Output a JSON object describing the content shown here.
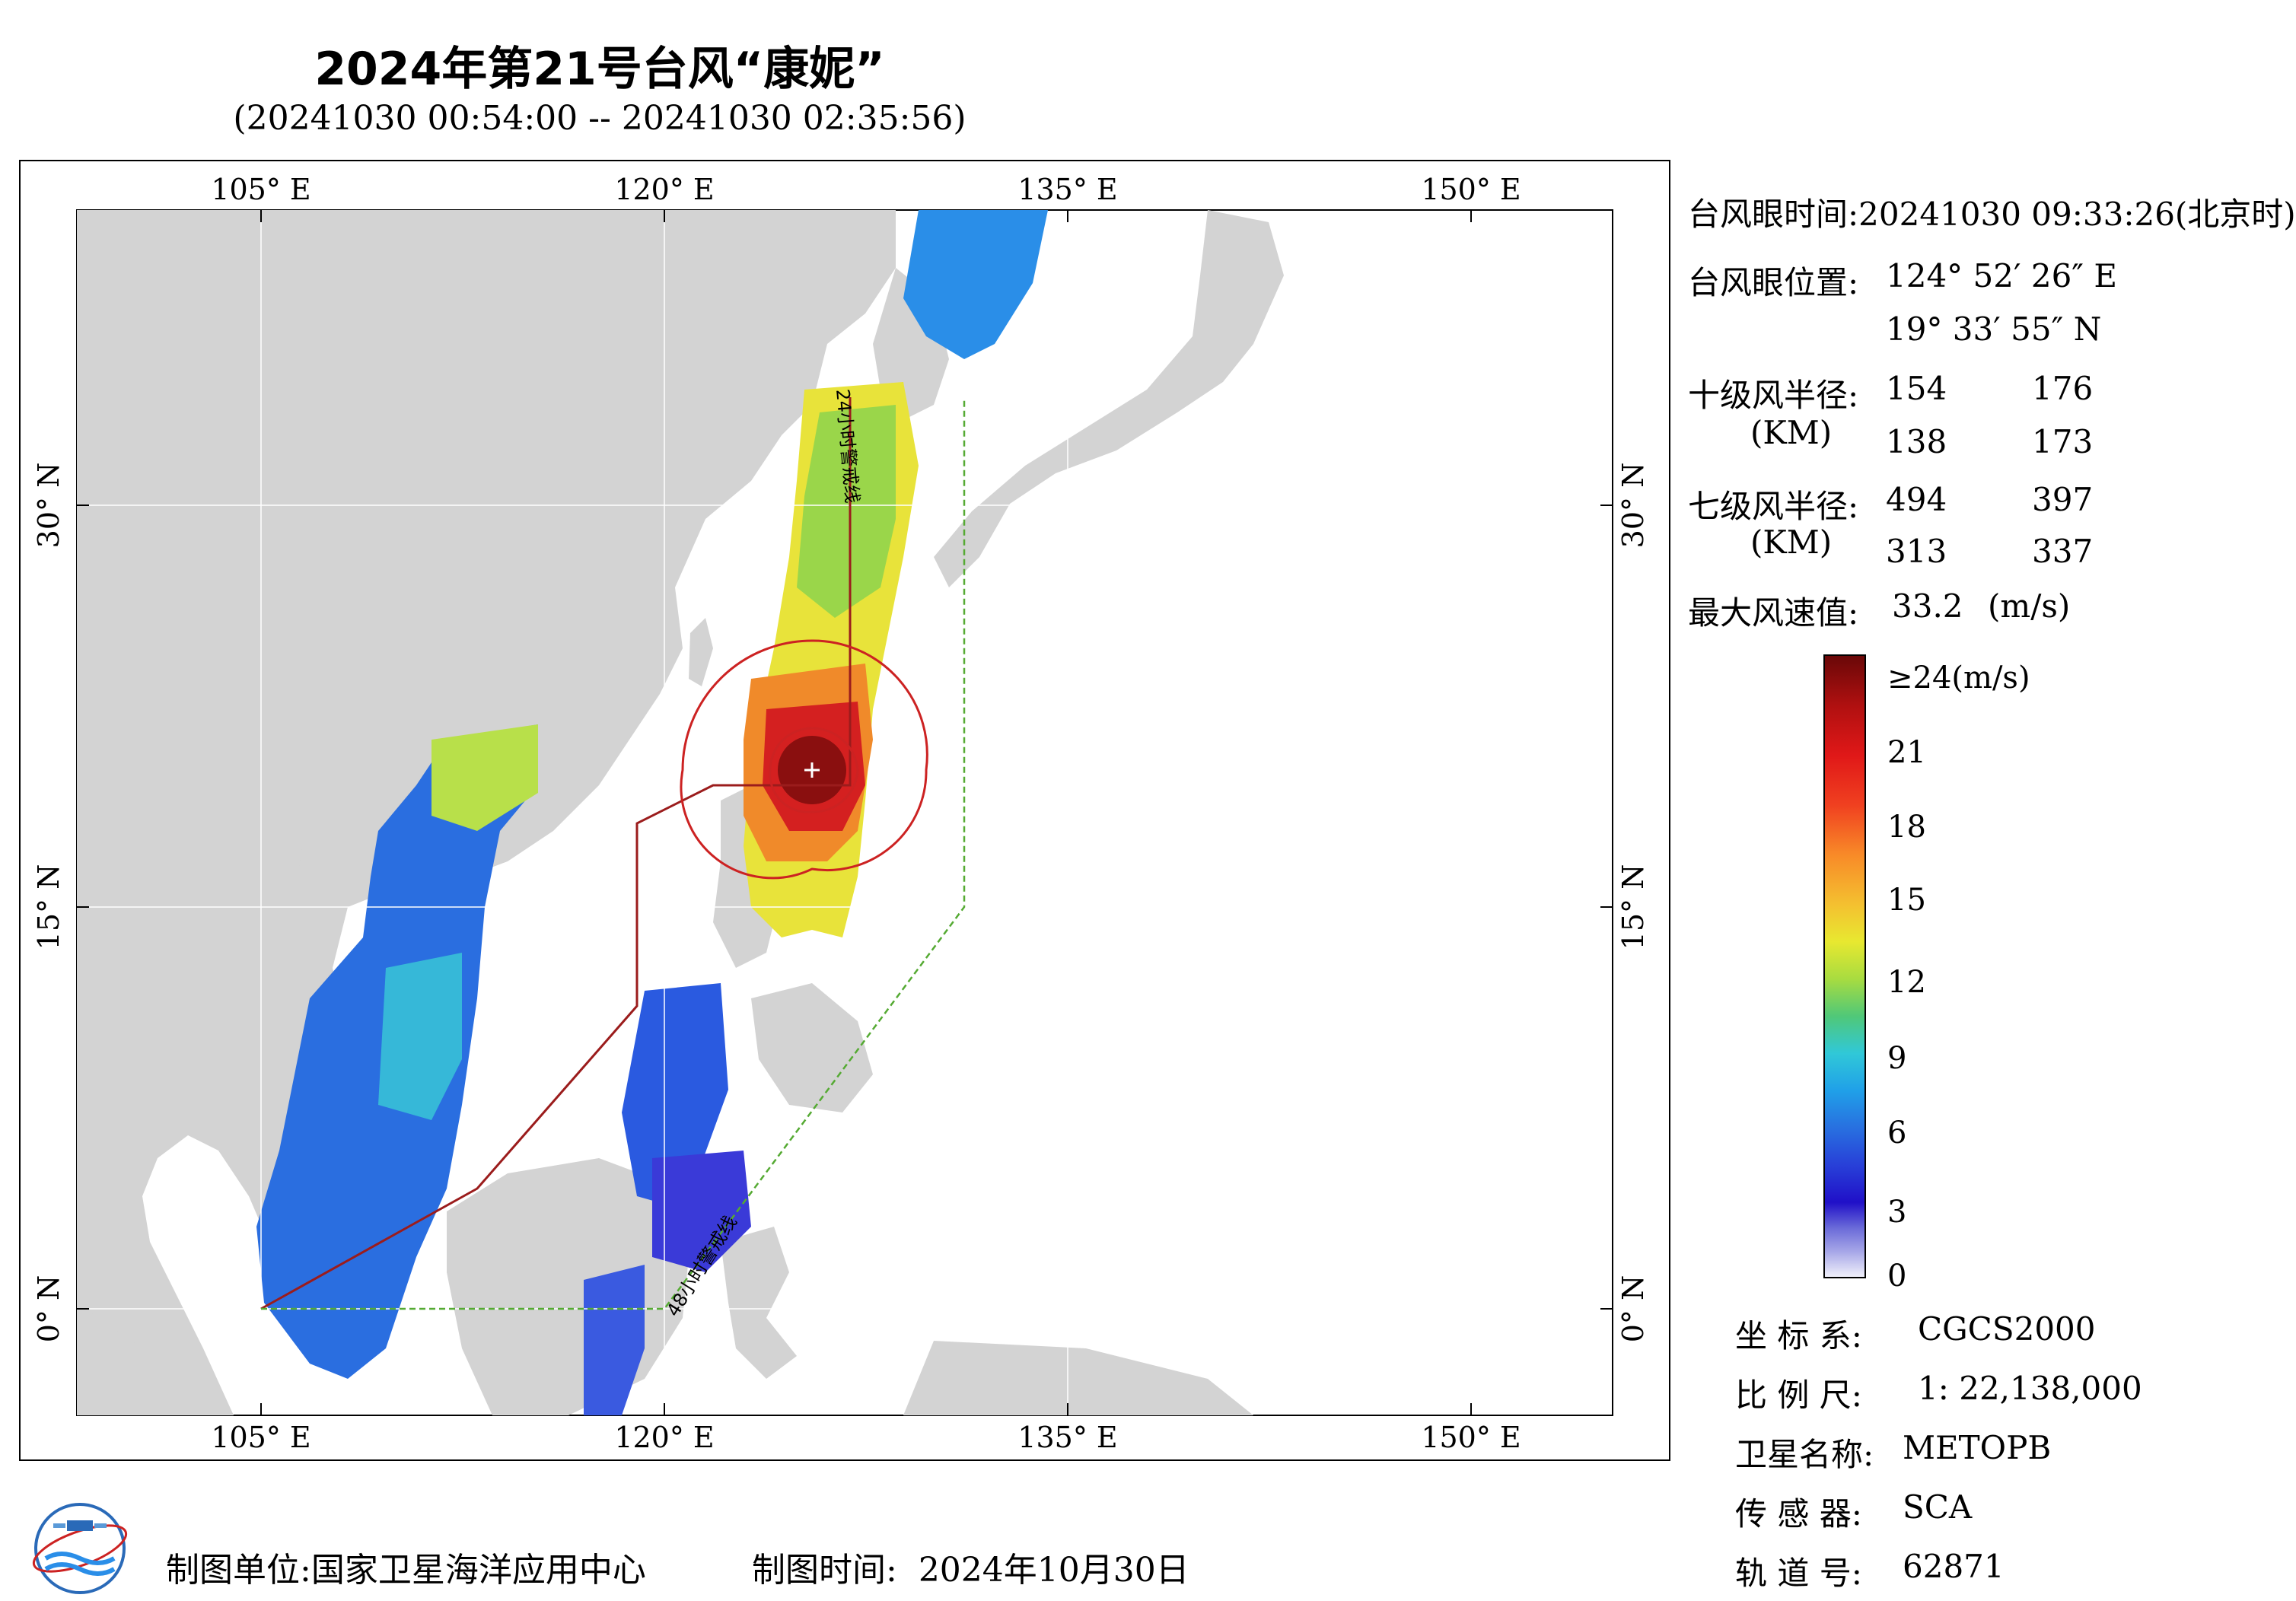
{
  "title": "2024年第21号台风“康妮”",
  "subtitle": "(20241030 00:54:00 -- 20241030 02:35:56)",
  "map": {
    "lon_ticks_top": [
      "105° E",
      "120° E",
      "135° E",
      "150° E"
    ],
    "lon_ticks_bottom": [
      "105° E",
      "120° E",
      "135° E",
      "150° E"
    ],
    "lat_ticks_left": [
      "30° N",
      "15° N",
      "0° N"
    ],
    "lat_ticks_right": [
      "30° N",
      "15° N",
      "0° N"
    ],
    "warning_24h_label": "24小时警戒线",
    "warning_48h_label": "48小时警戒线",
    "colors": {
      "land": "#d3d3d3",
      "sea": "#ffffff",
      "line24": "#9b1c1c",
      "line48": "#55aa33",
      "circle": "#cc2222"
    }
  },
  "info": {
    "eye_time_label": "台风眼时间:",
    "eye_time_value": "20241030 09:33:26(北京时)",
    "eye_pos_label": "台风眼位置:",
    "eye_lon": "124° 52′ 26″ E",
    "eye_lat": "19° 33′ 55″ N",
    "r10_label": "十级风半径:",
    "r10_unit": "(KM)",
    "r10_values": [
      "154",
      "176",
      "138",
      "173"
    ],
    "r7_label": "七级风半径:",
    "r7_unit": "(KM)",
    "r7_values": [
      "494",
      "397",
      "313",
      "337"
    ],
    "max_wind_label": "最大风速值:",
    "max_wind_value": "33.2",
    "max_wind_unit": "(m/s)"
  },
  "colorbar": {
    "labels": [
      "≥24(m/s)",
      "21",
      "18",
      "15",
      "12",
      "9",
      "6",
      "3",
      "0"
    ]
  },
  "meta": {
    "coord_label": "坐 标 系:",
    "coord_value": "CGCS2000",
    "scale_label": "比 例 尺:",
    "scale_value": "1: 22,138,000",
    "satellite_label": "卫星名称:",
    "satellite_value": "METOPB",
    "sensor_label": "传 感 器:",
    "sensor_value": "SCA",
    "orbit_label": "轨 道 号:",
    "orbit_value": "62871"
  },
  "footer": {
    "org_label": "制图单位:",
    "org_value": "国家卫星海洋应用中心",
    "date_label": "制图时间:",
    "date_value": "2024年10月30日"
  }
}
